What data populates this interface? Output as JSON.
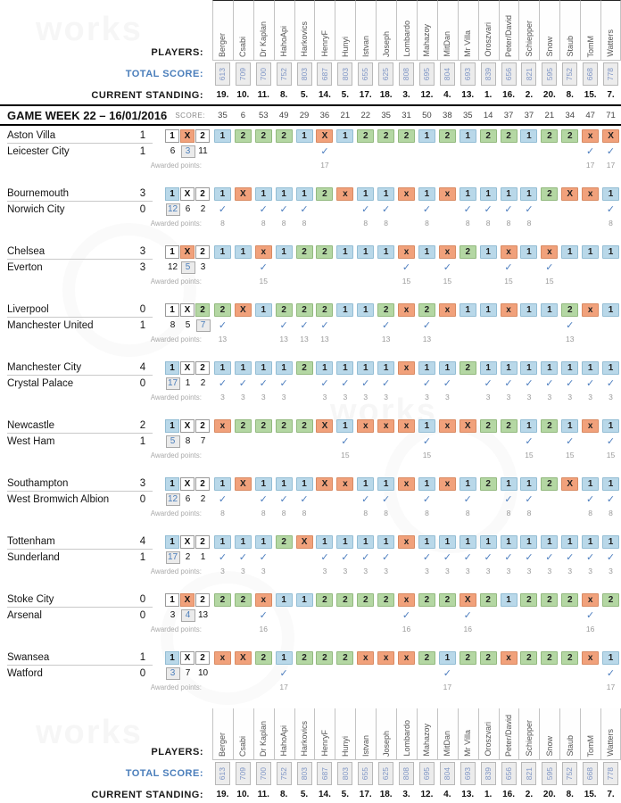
{
  "page": {
    "labels": {
      "players": "PLAYERS:",
      "total_score": "TOTAL SCORE:",
      "current_standing": "CURRENT STANDING:",
      "game_week_title": "GAME WEEK 22 – 16/01/2016",
      "score": "SCORE:",
      "awarded_points": "Awarded points:"
    },
    "watermark": "works",
    "colors": {
      "home_win_cell": "#b9d8e9",
      "draw_cell": "#f1a17b",
      "away_win_cell": "#b4d7a3",
      "accent_blue": "#4a7ebb",
      "muted_gray": "#9a9a9a"
    }
  },
  "players": [
    "Berger",
    "Csabi",
    "Dr Kaplan",
    "HahoApi",
    "Harkovics",
    "HenryF",
    "Hunyi",
    "Istvan",
    "Joseph",
    "Lombardo",
    "Mahazoy",
    "MitDan",
    "Mr Villa",
    "Oroszvari",
    "Peter/David",
    "Schiepper",
    "Snow",
    "Staub",
    "TomM",
    "Watters"
  ],
  "total_scores": [
    "613",
    "709",
    "700",
    "752",
    "803",
    "687",
    "803",
    "655",
    "625",
    "808",
    "695",
    "804",
    "693",
    "839",
    "656",
    "821",
    "595",
    "752",
    "668",
    "778"
  ],
  "current_standings": [
    "19.",
    "10.",
    "11.",
    "8.",
    "5.",
    "14.",
    "5.",
    "17.",
    "18.",
    "3.",
    "12.",
    "4.",
    "13.",
    "1.",
    "16.",
    "2.",
    "20.",
    "8.",
    "15.",
    "7."
  ],
  "week_scores": [
    "35",
    "6",
    "53",
    "49",
    "29",
    "36",
    "21",
    "22",
    "35",
    "31",
    "50",
    "38",
    "35",
    "14",
    "37",
    "37",
    "21",
    "34",
    "47",
    "71"
  ],
  "matches": [
    {
      "home": "Aston Villa",
      "home_score": "1",
      "away": "Leicester City",
      "away_score": "1",
      "result": "X",
      "counts": {
        "1": "6",
        "X": "3",
        "2": "11"
      },
      "points": "17",
      "predictions": [
        "1",
        "2",
        "2",
        "2",
        "1",
        "X",
        "1",
        "2",
        "2",
        "2",
        "1",
        "2",
        "1",
        "2",
        "2",
        "1",
        "2",
        "2",
        "x",
        "X"
      ]
    },
    {
      "home": "Bournemouth",
      "home_score": "3",
      "away": "Norwich City",
      "away_score": "0",
      "result": "1",
      "counts": {
        "1": "12",
        "X": "6",
        "2": "2"
      },
      "points": "8",
      "predictions": [
        "1",
        "X",
        "1",
        "1",
        "1",
        "2",
        "x",
        "1",
        "1",
        "x",
        "1",
        "x",
        "1",
        "1",
        "1",
        "1",
        "2",
        "X",
        "x",
        "1"
      ]
    },
    {
      "home": "Chelsea",
      "home_score": "3",
      "away": "Everton",
      "away_score": "3",
      "result": "X",
      "counts": {
        "1": "12",
        "X": "5",
        "2": "3"
      },
      "points": "15",
      "predictions": [
        "1",
        "1",
        "x",
        "1",
        "2",
        "2",
        "1",
        "1",
        "1",
        "x",
        "1",
        "x",
        "2",
        "1",
        "x",
        "1",
        "x",
        "1",
        "1",
        "1"
      ]
    },
    {
      "home": "Liverpool",
      "home_score": "0",
      "away": "Manchester United",
      "away_score": "1",
      "result": "2",
      "counts": {
        "1": "8",
        "X": "5",
        "2": "7"
      },
      "points": "13",
      "predictions": [
        "2",
        "X",
        "1",
        "2",
        "2",
        "2",
        "1",
        "1",
        "2",
        "x",
        "2",
        "x",
        "1",
        "1",
        "x",
        "1",
        "1",
        "2",
        "x",
        "1"
      ]
    },
    {
      "home": "Manchester City",
      "home_score": "4",
      "away": "Crystal Palace",
      "away_score": "0",
      "result": "1",
      "counts": {
        "1": "17",
        "X": "1",
        "2": "2"
      },
      "points": "3",
      "predictions": [
        "1",
        "1",
        "1",
        "1",
        "2",
        "1",
        "1",
        "1",
        "1",
        "x",
        "1",
        "1",
        "2",
        "1",
        "1",
        "1",
        "1",
        "1",
        "1",
        "1"
      ]
    },
    {
      "home": "Newcastle",
      "home_score": "2",
      "away": "West Ham",
      "away_score": "1",
      "result": "1",
      "counts": {
        "1": "5",
        "X": "8",
        "2": "7"
      },
      "points": "15",
      "predictions": [
        "x",
        "2",
        "2",
        "2",
        "2",
        "X",
        "1",
        "x",
        "x",
        "x",
        "1",
        "x",
        "X",
        "2",
        "2",
        "1",
        "2",
        "1",
        "x",
        "1"
      ]
    },
    {
      "home": "Southampton",
      "home_score": "3",
      "away": "West Bromwich Albion",
      "away_score": "0",
      "result": "1",
      "counts": {
        "1": "12",
        "X": "6",
        "2": "2"
      },
      "points": "8",
      "predictions": [
        "1",
        "X",
        "1",
        "1",
        "1",
        "X",
        "x",
        "1",
        "1",
        "x",
        "1",
        "x",
        "1",
        "2",
        "1",
        "1",
        "2",
        "X",
        "1",
        "1"
      ]
    },
    {
      "home": "Tottenham",
      "home_score": "4",
      "away": "Sunderland",
      "away_score": "1",
      "result": "1",
      "counts": {
        "1": "17",
        "X": "2",
        "2": "1"
      },
      "points": "3",
      "predictions": [
        "1",
        "1",
        "1",
        "2",
        "X",
        "1",
        "1",
        "1",
        "1",
        "x",
        "1",
        "1",
        "1",
        "1",
        "1",
        "1",
        "1",
        "1",
        "1",
        "1"
      ]
    },
    {
      "home": "Stoke City",
      "home_score": "0",
      "away": "Arsenal",
      "away_score": "0",
      "result": "X",
      "counts": {
        "1": "3",
        "X": "4",
        "2": "13"
      },
      "points": "16",
      "predictions": [
        "2",
        "2",
        "x",
        "1",
        "1",
        "2",
        "2",
        "2",
        "2",
        "x",
        "2",
        "2",
        "X",
        "2",
        "1",
        "2",
        "2",
        "2",
        "x",
        "2"
      ]
    },
    {
      "home": "Swansea",
      "home_score": "1",
      "away": "Watford",
      "away_score": "0",
      "result": "1",
      "counts": {
        "1": "3",
        "X": "7",
        "2": "10"
      },
      "points": "17",
      "predictions": [
        "x",
        "X",
        "2",
        "1",
        "2",
        "2",
        "2",
        "x",
        "x",
        "x",
        "2",
        "1",
        "2",
        "2",
        "x",
        "2",
        "2",
        "2",
        "x",
        "1"
      ]
    }
  ]
}
